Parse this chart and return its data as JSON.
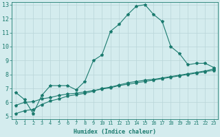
{
  "xlabel": "Humidex (Indice chaleur)",
  "x": [
    0,
    1,
    2,
    3,
    4,
    5,
    6,
    7,
    8,
    9,
    10,
    11,
    12,
    13,
    14,
    15,
    16,
    17,
    18,
    19,
    20,
    21,
    22,
    23
  ],
  "line1": [
    6.7,
    6.2,
    5.2,
    6.5,
    7.2,
    7.2,
    7.2,
    6.9,
    7.5,
    9.0,
    9.4,
    11.1,
    11.6,
    12.3,
    12.9,
    13.0,
    12.3,
    11.8,
    10.0,
    9.5,
    8.7,
    8.8,
    8.8,
    8.5
  ],
  "line2": [
    5.2,
    5.4,
    5.5,
    5.85,
    6.1,
    6.25,
    6.45,
    6.55,
    6.65,
    6.8,
    7.0,
    7.1,
    7.25,
    7.4,
    7.5,
    7.6,
    7.65,
    7.75,
    7.85,
    7.95,
    8.05,
    8.15,
    8.25,
    8.4
  ],
  "line3": [
    5.8,
    6.0,
    6.05,
    6.25,
    6.35,
    6.5,
    6.6,
    6.65,
    6.75,
    6.85,
    6.95,
    7.05,
    7.2,
    7.3,
    7.4,
    7.5,
    7.6,
    7.7,
    7.8,
    7.9,
    8.0,
    8.1,
    8.2,
    8.3
  ],
  "line_color": "#1a7a6e",
  "bg_color": "#d4ecee",
  "grid_color": "#b8d4d8",
  "ylim": [
    4.8,
    13.2
  ],
  "xlim": [
    -0.5,
    23.5
  ],
  "yticks": [
    5,
    6,
    7,
    8,
    9,
    10,
    11,
    12,
    13
  ],
  "xticks": [
    0,
    1,
    2,
    3,
    4,
    5,
    6,
    7,
    8,
    9,
    10,
    11,
    12,
    13,
    14,
    15,
    16,
    17,
    18,
    19,
    20,
    21,
    22,
    23
  ],
  "marker": "*",
  "markersize": 3,
  "linewidth": 0.8,
  "xlabel_fontsize": 6,
  "tick_fontsize": 5,
  "ytick_fontsize": 6
}
